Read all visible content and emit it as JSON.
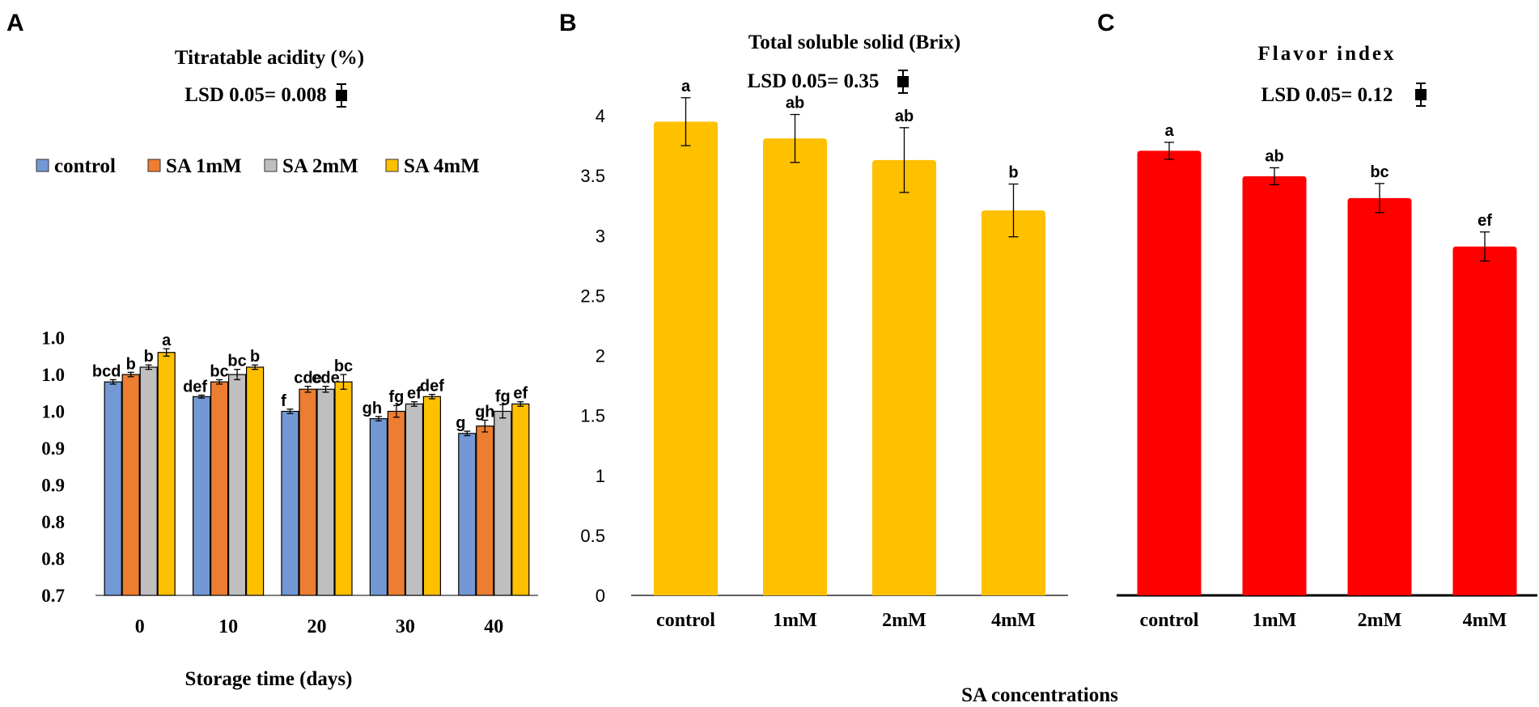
{
  "panels": {
    "a": {
      "letter": "A"
    },
    "b": {
      "letter": "B"
    },
    "c": {
      "letter": "C"
    }
  },
  "shared": {
    "x_title": "SA concentrations"
  },
  "colors": {
    "control": "#7399d4",
    "sa1": "#ed7d31",
    "sa2": "#bfbfbf",
    "sa4": "#ffc000",
    "brix": "#ffc000",
    "flavor": "#ff0000"
  },
  "chart_data": [
    {
      "id": "A",
      "type": "bar",
      "title": "Titratable acidity (%)",
      "lsd_label": "LSD 0.05= 0.008",
      "xlabel": "Storage time (days)",
      "ylabel": "",
      "categories": [
        "0",
        "10",
        "20",
        "30",
        "40"
      ],
      "ylim": [
        0.7,
        1.1
      ],
      "ytick_values": [
        0.7,
        0.75,
        0.8,
        0.85,
        0.9,
        0.95,
        1.0,
        1.05
      ],
      "ytick_labels": [
        "0.7",
        "0.8",
        "0.8",
        "0.9",
        "0.9",
        "1.0",
        "1.0",
        "1.0"
      ],
      "legend_position": "top",
      "series": [
        {
          "name": "control",
          "color_key": "control",
          "values": [
            0.99,
            0.97,
            0.95,
            0.94,
            0.92
          ],
          "errors": [
            0.003,
            0.002,
            0.003,
            0.003,
            0.003
          ],
          "letters": [
            "bcd",
            "def",
            "f",
            "gh",
            "g"
          ]
        },
        {
          "name": "SA 1mM",
          "color_key": "sa1",
          "values": [
            1.0,
            0.99,
            0.98,
            0.95,
            0.93
          ],
          "errors": [
            0.003,
            0.003,
            0.004,
            0.008,
            0.008
          ],
          "letters": [
            "b",
            "bc",
            "cde",
            "fg",
            "gh"
          ]
        },
        {
          "name": "SA 2mM",
          "color_key": "sa2",
          "values": [
            1.01,
            1.0,
            0.98,
            0.96,
            0.95
          ],
          "errors": [
            0.003,
            0.007,
            0.004,
            0.003,
            0.009
          ],
          "letters": [
            "b",
            "bc",
            "cde",
            "ef",
            "fg"
          ]
        },
        {
          "name": "SA 4mM",
          "color_key": "sa4",
          "values": [
            1.03,
            1.01,
            0.99,
            0.97,
            0.96
          ],
          "errors": [
            0.005,
            0.003,
            0.01,
            0.003,
            0.003
          ],
          "letters": [
            "a",
            "b",
            "bc",
            "def",
            "ef"
          ]
        }
      ]
    },
    {
      "id": "B",
      "type": "bar",
      "title": "Total soluble solid (Brix)",
      "lsd_label": "LSD 0.05= 0.35",
      "xlabel": "",
      "ylabel": "",
      "categories": [
        "control",
        "1mM",
        "2mM",
        "4mM"
      ],
      "ylim": [
        0,
        4
      ],
      "ytick_values": [
        0,
        0.5,
        1,
        1.5,
        2,
        2.5,
        3,
        3.5,
        4
      ],
      "ytick_labels": [
        "0",
        "0.5",
        "1",
        "1.5",
        "2",
        "2.5",
        "3",
        "3.5",
        "4"
      ],
      "series": [
        {
          "name": "Total soluble solid",
          "color_key": "brix",
          "values": [
            3.95,
            3.81,
            3.63,
            3.21
          ],
          "errors": [
            0.2,
            0.2,
            0.27,
            0.22
          ],
          "letters": [
            "a",
            "ab",
            "ab",
            "b"
          ]
        }
      ]
    },
    {
      "id": "C",
      "type": "bar",
      "title": "Flavor index",
      "lsd_label": "LSD 0.05= 0.12",
      "xlabel": "",
      "ylabel": "",
      "categories": [
        "control",
        "1mM",
        "2mM",
        "4mM"
      ],
      "ylim": [
        0,
        4
      ],
      "ytick_values": [],
      "ytick_labels": [],
      "series": [
        {
          "name": "Flavor index",
          "color_key": "flavor",
          "values": [
            3.67,
            3.46,
            3.28,
            2.88
          ],
          "errors": [
            0.07,
            0.07,
            0.12,
            0.12
          ],
          "letters": [
            "a",
            "ab",
            "bc",
            "ef"
          ]
        }
      ]
    }
  ]
}
